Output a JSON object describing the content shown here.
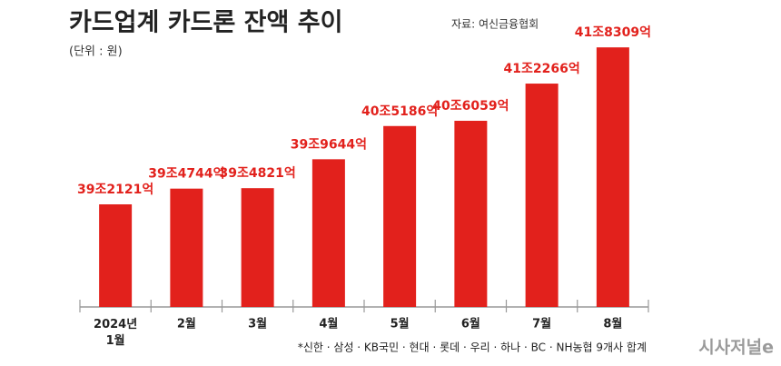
{
  "chart_data": {
    "type": "bar",
    "title": "카드업계 카드론 잔액 추이",
    "subtitle": "자료: 여신금융협회",
    "unit_note": "(단위 : 원)",
    "footnote": "*신한 · 삼성 · KB국민 · 현대 · 롯데 · 우리 · 하나 · BC · NH농협 9개사 합계",
    "source_logo": "시사저널e",
    "categories": [
      "2024년\n1월",
      "2월",
      "3월",
      "4월",
      "5월",
      "6월",
      "7월",
      "8월"
    ],
    "values": [
      392121,
      394744,
      394821,
      399644,
      405186,
      406059,
      412266,
      418309
    ],
    "value_labels": [
      "39조2121억",
      "39조4744억",
      "39조4821억",
      "39조9644억",
      "40조5186억",
      "40조6059억",
      "41조2266억",
      "41조8309억"
    ],
    "color": "#e2211c",
    "ylim": [
      375000,
      420000
    ]
  }
}
